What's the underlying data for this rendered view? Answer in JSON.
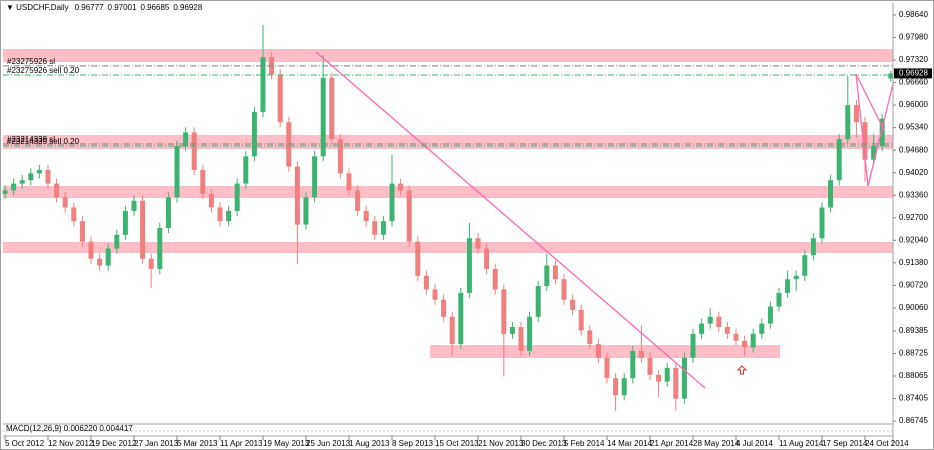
{
  "chart_data": {
    "type": "candlestick",
    "title": "USDCHF,Daily",
    "macd_label": "MACD(12,26,9) 0.006220 0.004417",
    "up_color": "#3cb371",
    "down_color": "#f08080",
    "grid": false,
    "ylim": [
      0.8663,
      0.9899
    ],
    "yticks": [
      {
        "value": 0.9864,
        "label": "0.98640"
      },
      {
        "value": 0.9798,
        "label": "0.97980"
      },
      {
        "value": 0.9732,
        "label": "0.97320"
      },
      {
        "value": 0.9666,
        "label": "0.96660"
      },
      {
        "value": 0.96,
        "label": "0.96000"
      },
      {
        "value": 0.9534,
        "label": "0.95340"
      },
      {
        "value": 0.9468,
        "label": "0.94680"
      },
      {
        "value": 0.9402,
        "label": "0.94020"
      },
      {
        "value": 0.9336,
        "label": "0.93360"
      },
      {
        "value": 0.927,
        "label": "0.92700"
      },
      {
        "value": 0.9204,
        "label": "0.92040"
      },
      {
        "value": 0.9138,
        "label": "0.91380"
      },
      {
        "value": 0.9072,
        "label": "0.90720"
      },
      {
        "value": 0.9006,
        "label": "0.90060"
      },
      {
        "value": 0.89385,
        "label": "0.89385"
      },
      {
        "value": 0.88725,
        "label": "0.88725"
      },
      {
        "value": 0.88065,
        "label": "0.88065"
      },
      {
        "value": 0.87405,
        "label": "0.87405"
      },
      {
        "value": 0.86745,
        "label": "0.86745"
      }
    ],
    "categories": [
      "5 Oct 2012",
      null,
      null,
      null,
      null,
      "12 Nov 2012",
      null,
      null,
      null,
      null,
      "19 Dec 2012",
      null,
      null,
      null,
      null,
      "27 Jan 2013",
      null,
      null,
      null,
      null,
      "5 Mar 2013",
      null,
      null,
      null,
      null,
      "11 Apr 2013",
      null,
      null,
      null,
      null,
      "19 May 2013",
      null,
      null,
      null,
      null,
      "25 Jun 2013",
      null,
      null,
      null,
      null,
      "1 Aug 2013",
      null,
      null,
      null,
      null,
      "8 Sep 2013",
      null,
      null,
      null,
      null,
      "15 Oct 2013",
      null,
      null,
      null,
      null,
      "21 Nov 2013",
      null,
      null,
      null,
      null,
      "30 Dec 2013",
      null,
      null,
      null,
      null,
      "5 Feb 2014",
      null,
      null,
      null,
      null,
      "14 Mar 2014",
      null,
      null,
      null,
      null,
      "21 Apr 2014",
      null,
      null,
      null,
      null,
      "28 May 2014",
      null,
      null,
      null,
      null,
      "4 Jul 2014",
      null,
      null,
      null,
      null,
      "11 Aug 2014",
      null,
      null,
      null,
      null,
      "17 Sep 2014",
      null,
      null,
      null,
      null,
      "24 Oct 2014",
      null,
      null,
      null
    ],
    "open": [
      0.934,
      0.935,
      0.937,
      0.938,
      0.94,
      0.941,
      0.937,
      0.933,
      0.93,
      0.926,
      0.92,
      0.915,
      0.913,
      0.918,
      0.922,
      0.929,
      0.932,
      0.915,
      0.912,
      0.924,
      0.933,
      0.948,
      0.952,
      0.941,
      0.934,
      0.93,
      0.926,
      0.929,
      0.937,
      0.945,
      0.958,
      0.974,
      0.969,
      0.955,
      0.942,
      0.925,
      0.933,
      0.945,
      0.968,
      0.95,
      0.94,
      0.935,
      0.929,
      0.926,
      0.922,
      0.926,
      0.937,
      0.935,
      0.92,
      0.91,
      0.906,
      0.903,
      0.898,
      0.89,
      0.905,
      0.921,
      0.918,
      0.912,
      0.906,
      0.893,
      0.895,
      0.888,
      0.898,
      0.907,
      0.913,
      0.909,
      0.903,
      0.9,
      0.894,
      0.89,
      0.886,
      0.88,
      0.875,
      0.88,
      0.888,
      0.886,
      0.881,
      0.879,
      0.883,
      0.874,
      0.886,
      0.893,
      0.896,
      0.898,
      0.895,
      0.893,
      0.891,
      0.889,
      0.893,
      0.896,
      0.901,
      0.905,
      0.909,
      0.91,
      0.916,
      0.921,
      0.93,
      0.938,
      0.95,
      0.96,
      0.955,
      0.944,
      0.948,
      0.96777
    ],
    "high": [
      0.9365,
      0.9385,
      0.9395,
      0.9415,
      0.9425,
      0.9425,
      0.9385,
      0.9345,
      0.9315,
      0.9275,
      0.9215,
      0.9165,
      0.9195,
      0.9235,
      0.9305,
      0.9335,
      0.9335,
      0.9165,
      0.9255,
      0.9345,
      0.9495,
      0.9535,
      0.9535,
      0.9425,
      0.9355,
      0.9315,
      0.9305,
      0.9385,
      0.9465,
      0.9595,
      0.9835,
      0.9755,
      0.9705,
      0.9565,
      0.9435,
      0.9345,
      0.9465,
      0.9745,
      0.9695,
      0.9515,
      0.9415,
      0.9365,
      0.9305,
      0.9275,
      0.9275,
      0.9455,
      0.9385,
      0.9365,
      0.9215,
      0.9115,
      0.9075,
      0.9045,
      0.8995,
      0.9065,
      0.9255,
      0.9225,
      0.9195,
      0.9135,
      0.9075,
      0.8965,
      0.8965,
      0.8995,
      0.9085,
      0.9165,
      0.9145,
      0.9105,
      0.9045,
      0.9015,
      0.8955,
      0.8915,
      0.8875,
      0.8815,
      0.8815,
      0.8895,
      0.8955,
      0.8875,
      0.8825,
      0.8845,
      0.8845,
      0.8875,
      0.8945,
      0.8975,
      0.9005,
      0.8995,
      0.8965,
      0.8945,
      0.8925,
      0.8945,
      0.8975,
      0.9025,
      0.9065,
      0.9115,
      0.9115,
      0.9175,
      0.9225,
      0.9315,
      0.9395,
      0.9515,
      0.9685,
      0.9615,
      0.9565,
      0.9515,
      0.9575,
      0.97001
    ],
    "low": [
      0.9325,
      0.9335,
      0.9355,
      0.9365,
      0.9385,
      0.9355,
      0.9315,
      0.9285,
      0.9245,
      0.9185,
      0.9135,
      0.9115,
      0.9115,
      0.9165,
      0.9205,
      0.9275,
      0.9135,
      0.9065,
      0.9105,
      0.9225,
      0.9315,
      0.9465,
      0.9395,
      0.9325,
      0.9285,
      0.9245,
      0.9245,
      0.9275,
      0.9355,
      0.9435,
      0.9565,
      0.9675,
      0.9535,
      0.9405,
      0.9135,
      0.9235,
      0.9315,
      0.9435,
      0.9485,
      0.9385,
      0.9335,
      0.9275,
      0.9245,
      0.9205,
      0.9205,
      0.9245,
      0.9335,
      0.9185,
      0.9085,
      0.9045,
      0.9015,
      0.8965,
      0.8865,
      0.8885,
      0.9035,
      0.9165,
      0.9105,
      0.9045,
      0.8805,
      0.8915,
      0.8865,
      0.8865,
      0.8965,
      0.9055,
      0.9075,
      0.9015,
      0.8985,
      0.8925,
      0.8885,
      0.8845,
      0.8785,
      0.8705,
      0.8735,
      0.8785,
      0.8845,
      0.8795,
      0.8745,
      0.8775,
      0.8705,
      0.8725,
      0.8845,
      0.8915,
      0.8945,
      0.8935,
      0.8915,
      0.8895,
      0.8865,
      0.8875,
      0.8915,
      0.8945,
      0.8995,
      0.9035,
      0.9055,
      0.9085,
      0.9145,
      0.9195,
      0.9285,
      0.9365,
      0.9485,
      0.9505,
      0.9375,
      0.9425,
      0.9465,
      0.96685
    ],
    "close": [
      0.935,
      0.937,
      0.938,
      0.94,
      0.941,
      0.937,
      0.933,
      0.93,
      0.926,
      0.92,
      0.915,
      0.913,
      0.918,
      0.922,
      0.929,
      0.932,
      0.915,
      0.912,
      0.924,
      0.933,
      0.948,
      0.952,
      0.941,
      0.934,
      0.93,
      0.926,
      0.929,
      0.937,
      0.945,
      0.958,
      0.974,
      0.969,
      0.955,
      0.942,
      0.925,
      0.933,
      0.945,
      0.968,
      0.95,
      0.94,
      0.935,
      0.929,
      0.926,
      0.922,
      0.926,
      0.937,
      0.935,
      0.92,
      0.91,
      0.906,
      0.903,
      0.898,
      0.89,
      0.905,
      0.921,
      0.918,
      0.912,
      0.906,
      0.893,
      0.895,
      0.888,
      0.898,
      0.907,
      0.913,
      0.909,
      0.903,
      0.9,
      0.894,
      0.89,
      0.886,
      0.88,
      0.875,
      0.88,
      0.888,
      0.886,
      0.881,
      0.879,
      0.883,
      0.874,
      0.886,
      0.893,
      0.896,
      0.898,
      0.895,
      0.893,
      0.891,
      0.889,
      0.893,
      0.896,
      0.901,
      0.905,
      0.909,
      0.91,
      0.916,
      0.921,
      0.93,
      0.938,
      0.95,
      0.96,
      0.955,
      0.944,
      0.948,
      0.956,
      0.96928
    ],
    "orders": [
      {
        "label": "#23275926 sl",
        "price": 0.9715,
        "color": "#808080"
      },
      {
        "label": "#23275926 sell 0.20",
        "price": 0.9688,
        "color": "#3cb371"
      },
      {
        "label": "#23214339 sl",
        "price": 0.9486,
        "color": "#808080"
      },
      {
        "label": "#23214339 sell 0.20",
        "price": 0.948,
        "color": "#3cb371"
      }
    ]
  }
}
